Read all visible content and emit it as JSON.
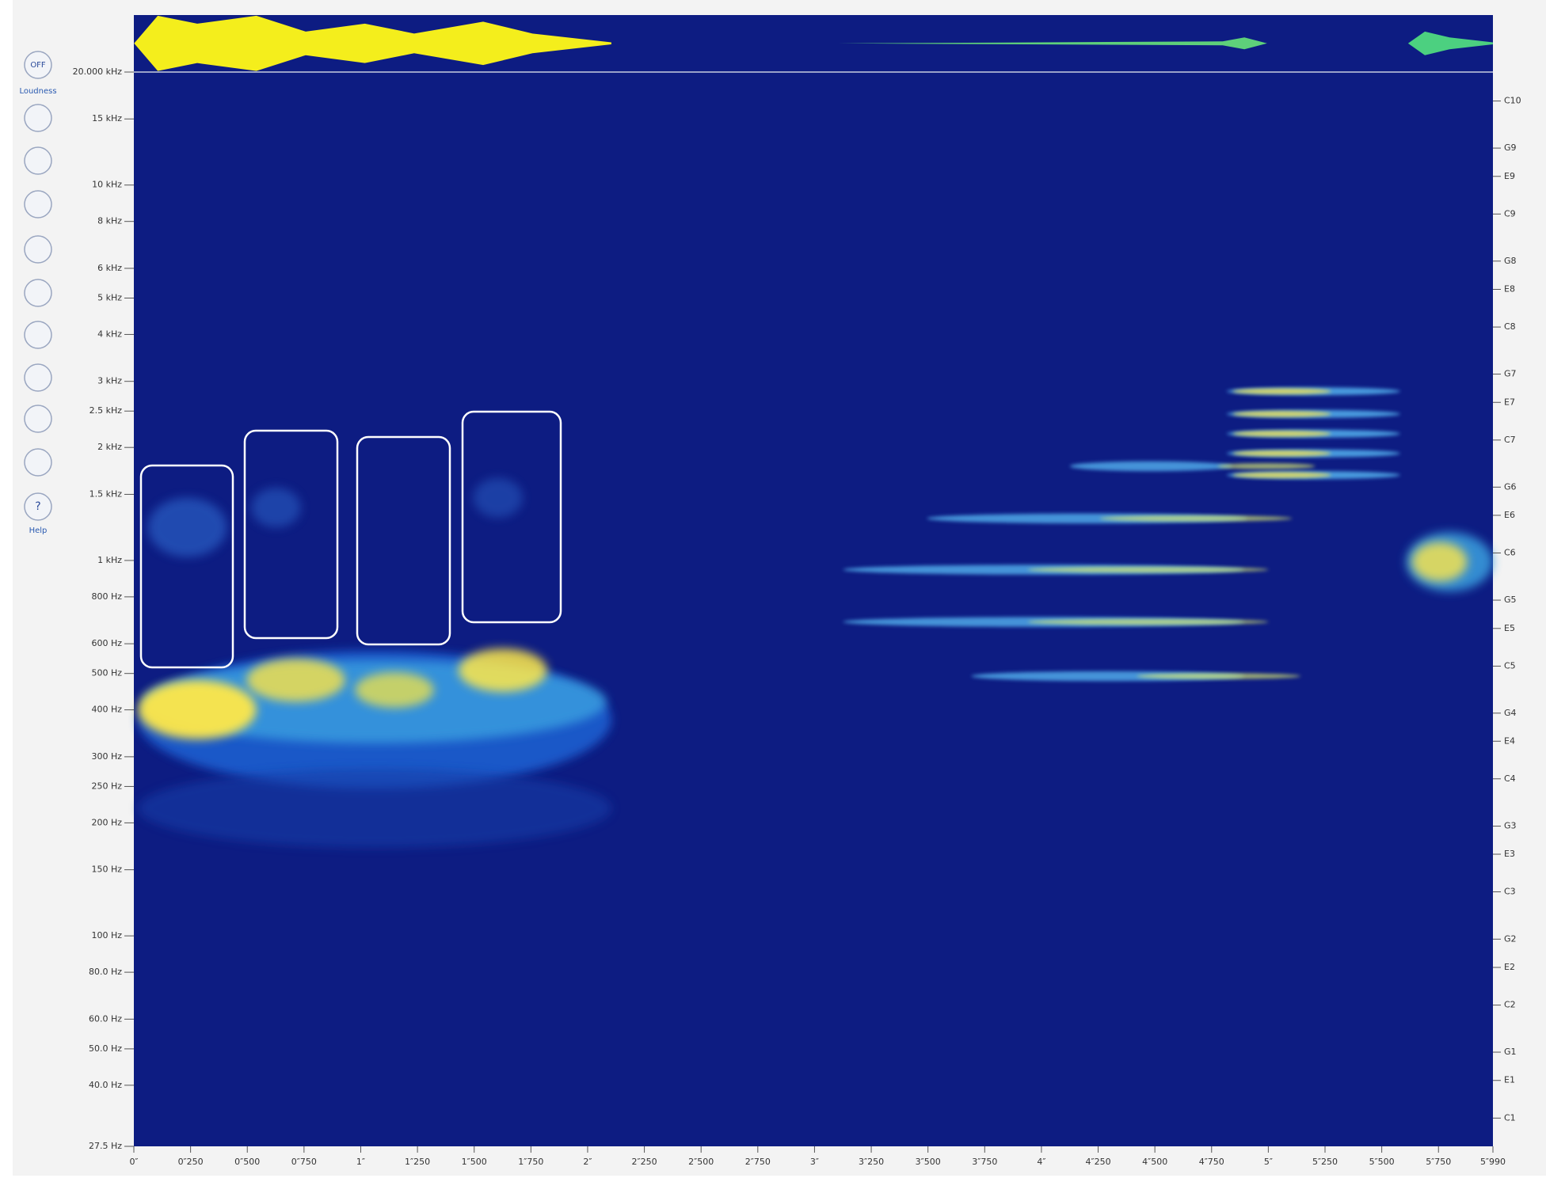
{
  "toolbar": {
    "power": "OFF",
    "mode": "Loudness",
    "help": "Help"
  },
  "chart_data": {
    "type": "spectrogram",
    "xlim": [
      0,
      5.99
    ],
    "xticks": [
      {
        "value": 0,
        "label": "0″"
      },
      {
        "value": 0.25,
        "label": "0″250"
      },
      {
        "value": 0.5,
        "label": "0″500"
      },
      {
        "value": 0.75,
        "label": "0″750"
      },
      {
        "value": 1,
        "label": "1″"
      },
      {
        "value": 1.25,
        "label": "1″250"
      },
      {
        "value": 1.5,
        "label": "1″500"
      },
      {
        "value": 1.75,
        "label": "1″750"
      },
      {
        "value": 2,
        "label": "2″"
      },
      {
        "value": 2.25,
        "label": "2″250"
      },
      {
        "value": 2.5,
        "label": "2″500"
      },
      {
        "value": 2.75,
        "label": "2″750"
      },
      {
        "value": 3,
        "label": "3″"
      },
      {
        "value": 3.25,
        "label": "3″250"
      },
      {
        "value": 3.5,
        "label": "3″500"
      },
      {
        "value": 3.75,
        "label": "3″750"
      },
      {
        "value": 4,
        "label": "4″"
      },
      {
        "value": 4.25,
        "label": "4″250"
      },
      {
        "value": 4.5,
        "label": "4″500"
      },
      {
        "value": 4.75,
        "label": "4″750"
      },
      {
        "value": 5,
        "label": "5″"
      },
      {
        "value": 5.25,
        "label": "5″250"
      },
      {
        "value": 5.5,
        "label": "5″500"
      },
      {
        "value": 5.75,
        "label": "5″750"
      },
      {
        "value": 5.99,
        "label": "5″990"
      }
    ],
    "ylim": [
      27.5,
      20000
    ],
    "log_scale": true,
    "yticks": [
      {
        "value": 20000,
        "label": "20.000 kHz"
      },
      {
        "value": 15000,
        "label": "15 kHz"
      },
      {
        "value": 10000,
        "label": "10 kHz"
      },
      {
        "value": 8000,
        "label": "8 kHz"
      },
      {
        "value": 6000,
        "label": "6 kHz"
      },
      {
        "value": 5000,
        "label": "5 kHz"
      },
      {
        "value": 4000,
        "label": "4 kHz"
      },
      {
        "value": 3000,
        "label": "3 kHz"
      },
      {
        "value": 2500,
        "label": "2.5 kHz"
      },
      {
        "value": 2000,
        "label": "2 kHz"
      },
      {
        "value": 1500,
        "label": "1.5 kHz"
      },
      {
        "value": 1000,
        "label": "1 kHz"
      },
      {
        "value": 800,
        "label": "800 Hz"
      },
      {
        "value": 600,
        "label": "600 Hz"
      },
      {
        "value": 500,
        "label": "500 Hz"
      },
      {
        "value": 400,
        "label": "400 Hz"
      },
      {
        "value": 300,
        "label": "300 Hz"
      },
      {
        "value": 250,
        "label": "250 Hz"
      },
      {
        "value": 200,
        "label": "200 Hz"
      },
      {
        "value": 150,
        "label": "150 Hz"
      },
      {
        "value": 100,
        "label": "100 Hz"
      },
      {
        "value": 80,
        "label": "80.0 Hz"
      },
      {
        "value": 60,
        "label": "60.0 Hz"
      },
      {
        "value": 50,
        "label": "50.0 Hz"
      },
      {
        "value": 40,
        "label": "40.0 Hz"
      },
      {
        "value": 27.5,
        "label": "27.5 Hz"
      }
    ],
    "y2ticks": [
      {
        "value": 16744,
        "label": "C10"
      },
      {
        "value": 12544,
        "label": "G9"
      },
      {
        "value": 10548,
        "label": "E9"
      },
      {
        "value": 8372,
        "label": "C9"
      },
      {
        "value": 6272,
        "label": "G8"
      },
      {
        "value": 5274,
        "label": "E8"
      },
      {
        "value": 4186,
        "label": "C8"
      },
      {
        "value": 3136,
        "label": "G7"
      },
      {
        "value": 2637,
        "label": "E7"
      },
      {
        "value": 2093,
        "label": "C7"
      },
      {
        "value": 1568,
        "label": "G6"
      },
      {
        "value": 1319,
        "label": "E6"
      },
      {
        "value": 1047,
        "label": "C6"
      },
      {
        "value": 784,
        "label": "G5"
      },
      {
        "value": 659,
        "label": "E5"
      },
      {
        "value": 523,
        "label": "C5"
      },
      {
        "value": 392,
        "label": "G4"
      },
      {
        "value": 330,
        "label": "E4"
      },
      {
        "value": 262,
        "label": "C4"
      },
      {
        "value": 196,
        "label": "G3"
      },
      {
        "value": 165,
        "label": "E3"
      },
      {
        "value": 131,
        "label": "C3"
      },
      {
        "value": 98,
        "label": "G2"
      },
      {
        "value": 82.4,
        "label": "E2"
      },
      {
        "value": 65.4,
        "label": "C2"
      },
      {
        "value": 49,
        "label": "G1"
      },
      {
        "value": 41.2,
        "label": "E1"
      },
      {
        "value": 32.7,
        "label": "C1"
      }
    ]
  }
}
